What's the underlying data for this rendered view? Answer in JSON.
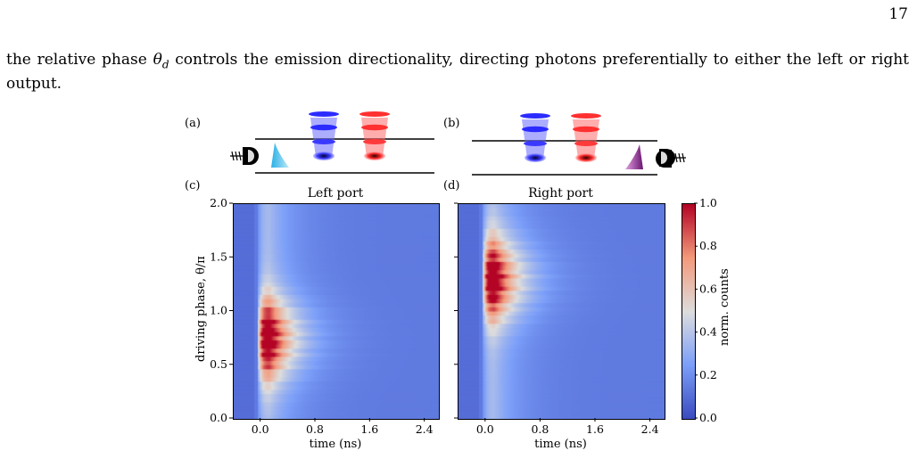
{
  "page": {
    "number": "17",
    "text_before": "the relative phase ",
    "theta_sym": "θ",
    "theta_sub": "d",
    "text_after": " controls the emission directionality, directing photons preferentially to either the left or right output."
  },
  "figure": {
    "panel_labels": {
      "a": "(a)",
      "b": "(b)",
      "c": "(c)",
      "d": "(d)"
    },
    "colorbar": {
      "label": "norm. counts",
      "ticks": [
        "0.0",
        "0.2",
        "0.4",
        "0.6",
        "0.8",
        "1.0"
      ],
      "colormap": "coolwarm"
    },
    "schematic_colors": {
      "qubit_blue": "#2b2bff",
      "qubit_red": "#ff3030",
      "pulse_left": "#3fc0f0",
      "pulse_right": "#8a1a8a"
    }
  },
  "chart_data": [
    {
      "type": "heatmap",
      "title": "Left port",
      "xlabel": "time (ns)",
      "ylabel": "driving phase, θ/π",
      "xlim": [
        -0.4,
        2.6
      ],
      "ylim": [
        0.0,
        2.0
      ],
      "xticks": [
        "0.0",
        "0.8",
        "1.6",
        "2.4"
      ],
      "yticks": [
        "0.0",
        "0.5",
        "1.0",
        "1.5",
        "2.0"
      ],
      "peak_time": 0.25,
      "peak_phase": 0.75,
      "peak_value": 1.0
    },
    {
      "type": "heatmap",
      "title": "Right port",
      "xlabel": "time (ns)",
      "ylabel": "",
      "xlim": [
        -0.4,
        2.6
      ],
      "ylim": [
        0.0,
        2.0
      ],
      "xticks": [
        "0.0",
        "0.8",
        "1.6",
        "2.4"
      ],
      "yticks": [],
      "peak_time": 0.25,
      "peak_phase": 1.3,
      "peak_value": 1.0
    }
  ]
}
